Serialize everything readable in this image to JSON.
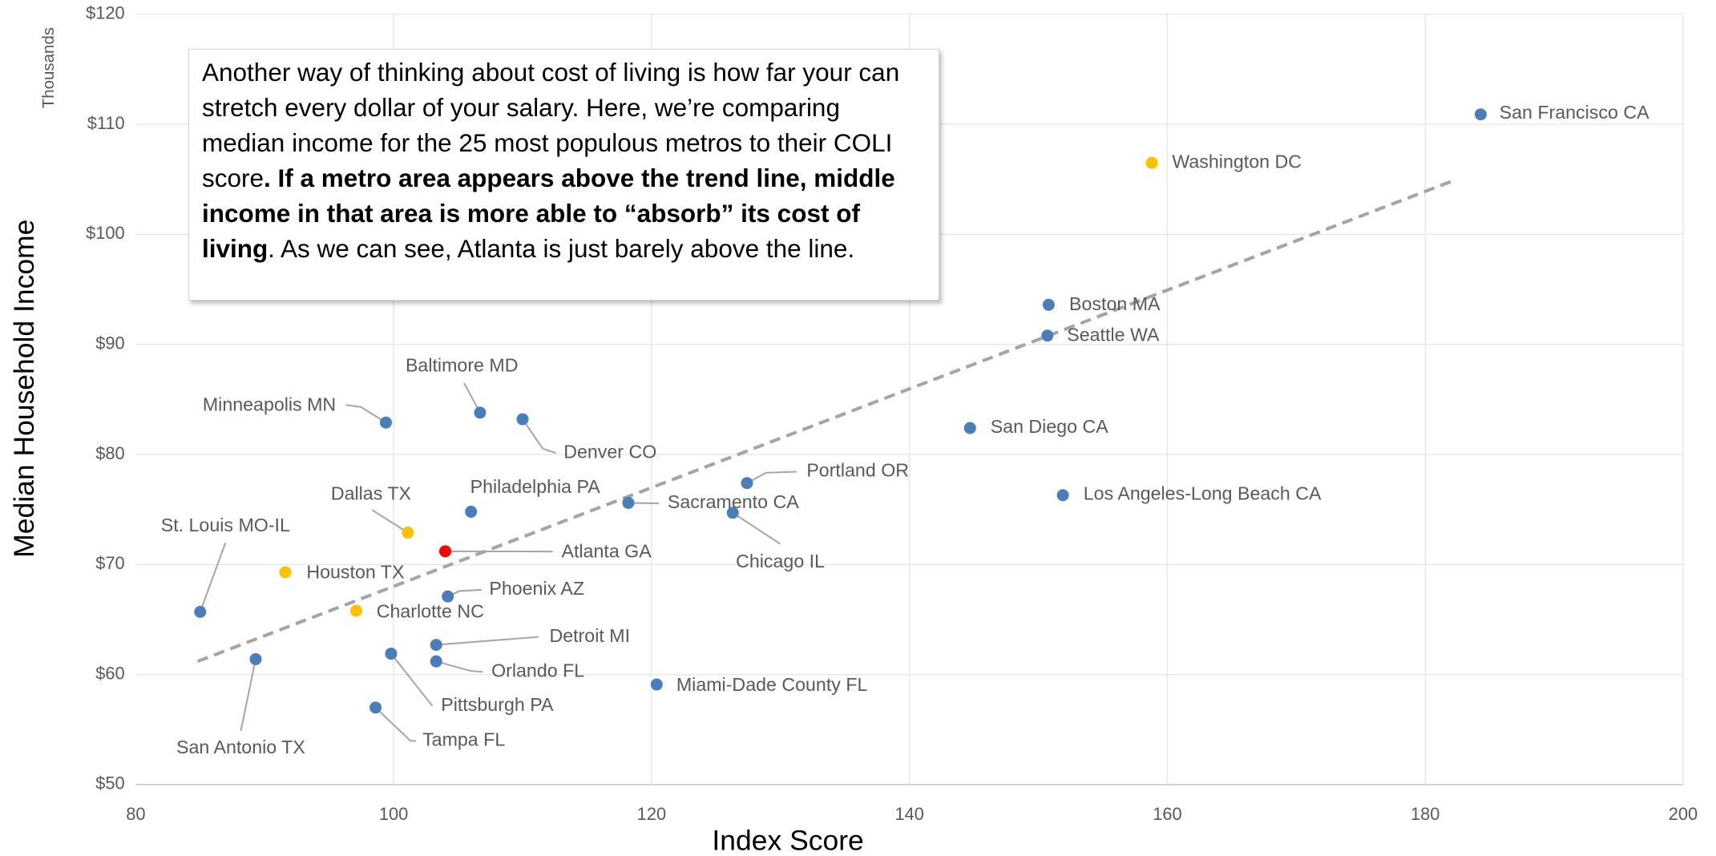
{
  "chart_data": {
    "type": "scatter",
    "x_label": "Index Score",
    "y_label": "Median Household Income",
    "y_unit_label": "Thousands",
    "annotation": [
      "Another way of thinking about cost of living is how far your can stretch every dollar of your salary. Here, we’re comparing median income for the 25 most populous metros to their COLI score",
      ". If a metro area appears above the trend line, middle income in that area is more able to “absorb” its cost of living",
      ". As we can see, Atlanta is just barely above the line."
    ],
    "labels": [
      "San Francisco CA",
      "Washington DC",
      "Boston MA",
      "Seattle WA",
      "San Diego CA",
      "Los Angeles-Long Beach CA",
      "Portland OR",
      "Chicago IL",
      "Sacramento CA",
      "Miami-Dade County FL",
      "Denver CO",
      "Baltimore MD",
      "Minneapolis MN",
      "Philadelphia PA",
      "Dallas TX",
      "Atlanta GA",
      "Houston TX",
      "St. Louis MO-IL",
      "Charlotte NC",
      "Phoenix AZ",
      "Detroit MI",
      "Orlando FL",
      "Pittsburgh PA",
      "San Antonio TX",
      "Tampa FL"
    ],
    "x": [
      184.3,
      158.8,
      150.8,
      150.7,
      144.7,
      151.9,
      127.4,
      126.3,
      118.2,
      120.4,
      110.0,
      106.7,
      99.4,
      106.0,
      101.1,
      104.0,
      91.6,
      85.0,
      97.1,
      104.2,
      103.3,
      103.3,
      99.8,
      89.3,
      98.6
    ],
    "values": [
      110.9,
      106.5,
      93.6,
      90.8,
      82.4,
      76.3,
      77.4,
      74.7,
      75.6,
      59.1,
      83.2,
      83.8,
      82.9,
      74.8,
      72.9,
      71.2,
      69.3,
      65.7,
      65.8,
      67.1,
      62.7,
      61.2,
      61.9,
      61.4,
      57.0
    ],
    "colors": [
      "#4a7ebb",
      "#ffc000",
      "#4a7ebb",
      "#4a7ebb",
      "#4a7ebb",
      "#4a7ebb",
      "#4a7ebb",
      "#4a7ebb",
      "#4a7ebb",
      "#4a7ebb",
      "#4a7ebb",
      "#4a7ebb",
      "#4a7ebb",
      "#4a7ebb",
      "#ffc000",
      "#ff0000",
      "#ffc000",
      "#4a7ebb",
      "#ffc000",
      "#4a7ebb",
      "#4a7ebb",
      "#4a7ebb",
      "#4a7ebb",
      "#4a7ebb",
      "#4a7ebb"
    ],
    "trendline": {
      "x": [
        84.8,
        182.0
      ],
      "values": [
        61.2,
        104.8
      ],
      "color": "#a5a5a5"
    },
    "xlim": [
      80,
      200
    ],
    "xticks": [
      80,
      100,
      120,
      140,
      160,
      180,
      200
    ],
    "ylim": [
      50,
      120
    ],
    "yticks": [
      {
        "value": 50,
        "label": "$50"
      },
      {
        "value": 60,
        "label": "$60"
      },
      {
        "value": 70,
        "label": "$70"
      },
      {
        "value": 80,
        "label": "$80"
      },
      {
        "value": 90,
        "label": "$90"
      },
      {
        "value": 100,
        "label": "$100"
      },
      {
        "value": 110,
        "label": "$110"
      },
      {
        "value": 120,
        "label": "$120"
      }
    ],
    "grid": true
  }
}
